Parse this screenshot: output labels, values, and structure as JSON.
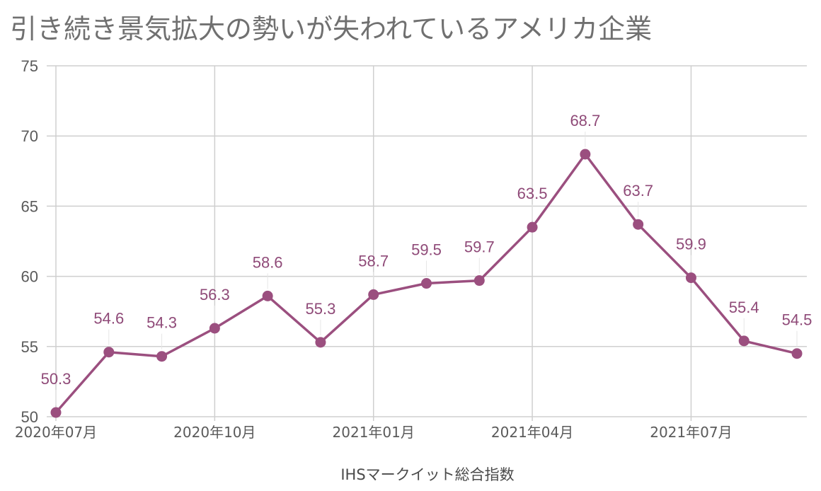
{
  "chart_data": {
    "type": "line",
    "title": "引き続き景気拡大の勢いが失われているアメリカ企業",
    "xlabel": "IHSマークイット総合指数",
    "ylabel": "",
    "ylim": [
      50,
      75
    ],
    "yticks": [
      "50",
      "55",
      "60",
      "65",
      "70",
      "75"
    ],
    "xtick_labels": [
      "2020年07月",
      "2020年10月",
      "2021年01月",
      "2021年04月",
      "2021年07月"
    ],
    "xtick_indices": [
      0,
      3,
      6,
      9,
      12
    ],
    "grid": true,
    "legend": "none",
    "series": [
      {
        "values": [
          50.3,
          54.6,
          54.3,
          56.3,
          58.6,
          55.3,
          58.7,
          59.5,
          59.7,
          63.5,
          68.7,
          63.7,
          59.9,
          55.4,
          54.5
        ],
        "labels": [
          "50.3",
          "54.6",
          "54.3",
          "56.3",
          "58.6",
          "55.3",
          "58.7",
          "59.5",
          "59.7",
          "63.5",
          "68.7",
          "63.7",
          "59.9",
          "55.4",
          "54.5"
        ],
        "color": "#9b4f7f"
      }
    ],
    "colors": {
      "line": "#9b4f7f",
      "label": "#8f4a78",
      "grid": "#cfcfcf",
      "title": "#707070"
    }
  }
}
